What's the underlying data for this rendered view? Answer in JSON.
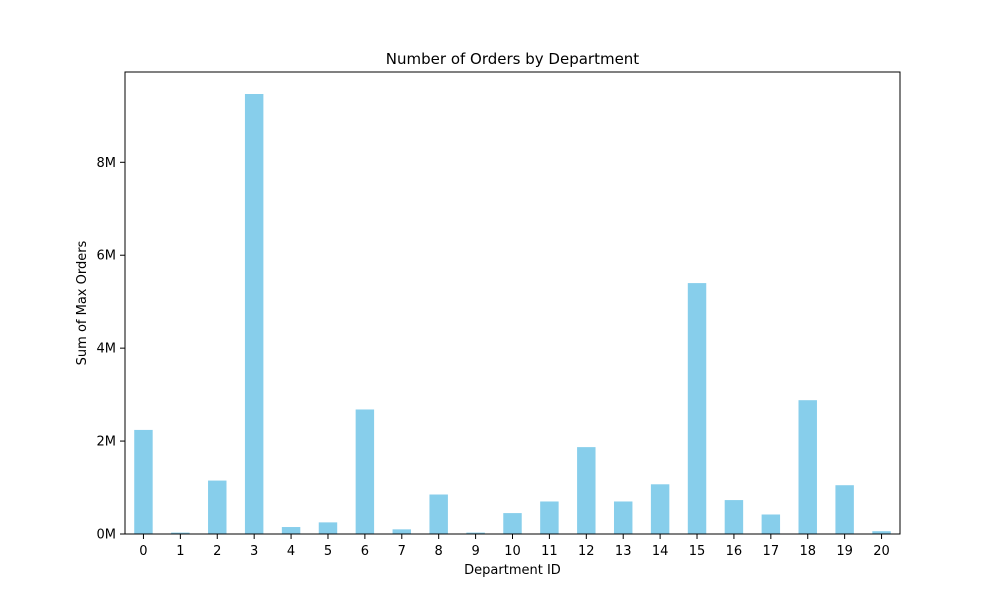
{
  "chart_data": {
    "type": "bar",
    "title": "Number of Orders by Department",
    "xlabel": "Department ID",
    "ylabel": "Sum of Max Orders",
    "categories": [
      "0",
      "1",
      "2",
      "3",
      "4",
      "5",
      "6",
      "7",
      "8",
      "9",
      "10",
      "11",
      "12",
      "13",
      "14",
      "15",
      "16",
      "17",
      "18",
      "19",
      "20"
    ],
    "values": [
      2240000,
      30000,
      1150000,
      9470000,
      150000,
      250000,
      2680000,
      100000,
      850000,
      30000,
      450000,
      700000,
      1870000,
      700000,
      1070000,
      5400000,
      730000,
      420000,
      2880000,
      1050000,
      60000
    ],
    "ylim": [
      0,
      9943500
    ],
    "yticks": [
      0,
      2000000,
      4000000,
      6000000,
      8000000
    ],
    "ytick_labels": [
      "0M",
      "2M",
      "4M",
      "6M",
      "8M"
    ],
    "bar_color": "#87ceeb",
    "grid": false,
    "legend": false
  }
}
